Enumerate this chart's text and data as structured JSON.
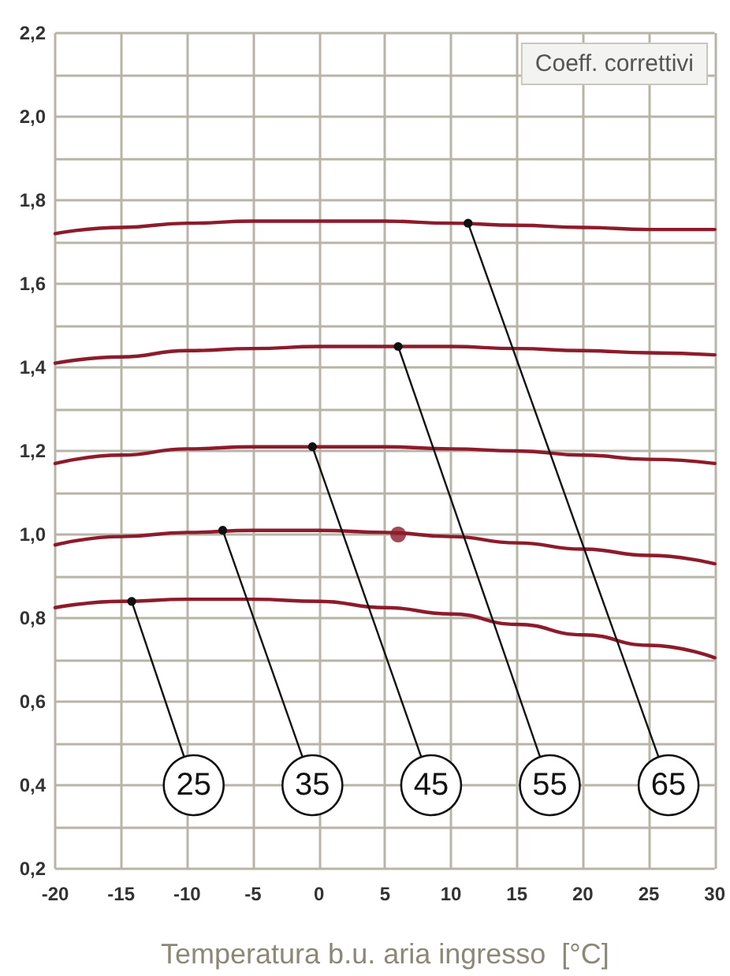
{
  "chart_data": {
    "type": "line",
    "xlabel": "Temperatura b.u. aria ingresso  [°C]",
    "ylabel": "Coeff. correttivi",
    "x": [
      -20,
      -15,
      -10,
      -5,
      0,
      5,
      10,
      15,
      20,
      25,
      30
    ],
    "series": [
      {
        "color": "#8c1c2c",
        "values": [
          1.72,
          1.735,
          1.745,
          1.75,
          1.75,
          1.75,
          1.745,
          1.74,
          1.735,
          1.73,
          1.73
        ]
      },
      {
        "color": "#8c1c2c",
        "values": [
          1.41,
          1.425,
          1.44,
          1.445,
          1.45,
          1.45,
          1.45,
          1.445,
          1.44,
          1.435,
          1.43
        ]
      },
      {
        "color": "#8c1c2c",
        "values": [
          1.17,
          1.19,
          1.205,
          1.21,
          1.21,
          1.21,
          1.205,
          1.2,
          1.19,
          1.18,
          1.17
        ]
      },
      {
        "color": "#8c1c2c",
        "values": [
          0.975,
          0.995,
          1.005,
          1.01,
          1.01,
          1.005,
          0.995,
          0.98,
          0.965,
          0.95,
          0.93
        ]
      },
      {
        "color": "#8c1c2c",
        "values": [
          0.825,
          0.84,
          0.845,
          0.845,
          0.84,
          0.825,
          0.81,
          0.785,
          0.76,
          0.735,
          0.705
        ]
      },
      {
        "type": "scatter",
        "color": "#8c1c2c",
        "x": [
          6
        ],
        "values": [
          1.0
        ]
      }
    ],
    "annotations": [
      {
        "text": "25",
        "x": -14.2,
        "y": 0.84
      },
      {
        "text": "35",
        "x": -7.3,
        "y": 1.01
      },
      {
        "text": "45",
        "x": -0.5,
        "y": 1.21
      },
      {
        "text": "55",
        "x": 6,
        "y": 1.45
      },
      {
        "text": "65",
        "x": 11.3,
        "y": 1.745
      }
    ],
    "xlim": [
      -20,
      30
    ],
    "ylim": [
      0.2,
      2.2
    ],
    "xticks": [
      -20,
      -15,
      -10,
      -5,
      0,
      5,
      10,
      15,
      20,
      25,
      30
    ],
    "yticks": [
      {
        "value": 0.2,
        "label": "0,2"
      },
      {
        "value": 0.3,
        "label": null
      },
      {
        "value": 0.4,
        "label": "0,4"
      },
      {
        "value": 0.5,
        "label": null
      },
      {
        "value": 0.6,
        "label": "0,6"
      },
      {
        "value": 0.7,
        "label": null
      },
      {
        "value": 0.8,
        "label": "0,8"
      },
      {
        "value": 0.9,
        "label": null
      },
      {
        "value": 1.0,
        "label": "1,0"
      },
      {
        "value": 1.1,
        "label": null
      },
      {
        "value": 1.2,
        "label": "1,2"
      },
      {
        "value": 1.3,
        "label": null
      },
      {
        "value": 1.4,
        "label": "1,4"
      },
      {
        "value": 1.5,
        "label": null
      },
      {
        "value": 1.6,
        "label": "1,6"
      },
      {
        "value": 1.7,
        "label": null
      },
      {
        "value": 1.8,
        "label": "1,8"
      },
      {
        "value": 1.9,
        "label": null
      },
      {
        "value": 2.0,
        "label": "2,0"
      },
      {
        "value": 2.1,
        "label": null
      },
      {
        "value": 2.2,
        "label": "2,2"
      }
    ],
    "grid": true
  }
}
